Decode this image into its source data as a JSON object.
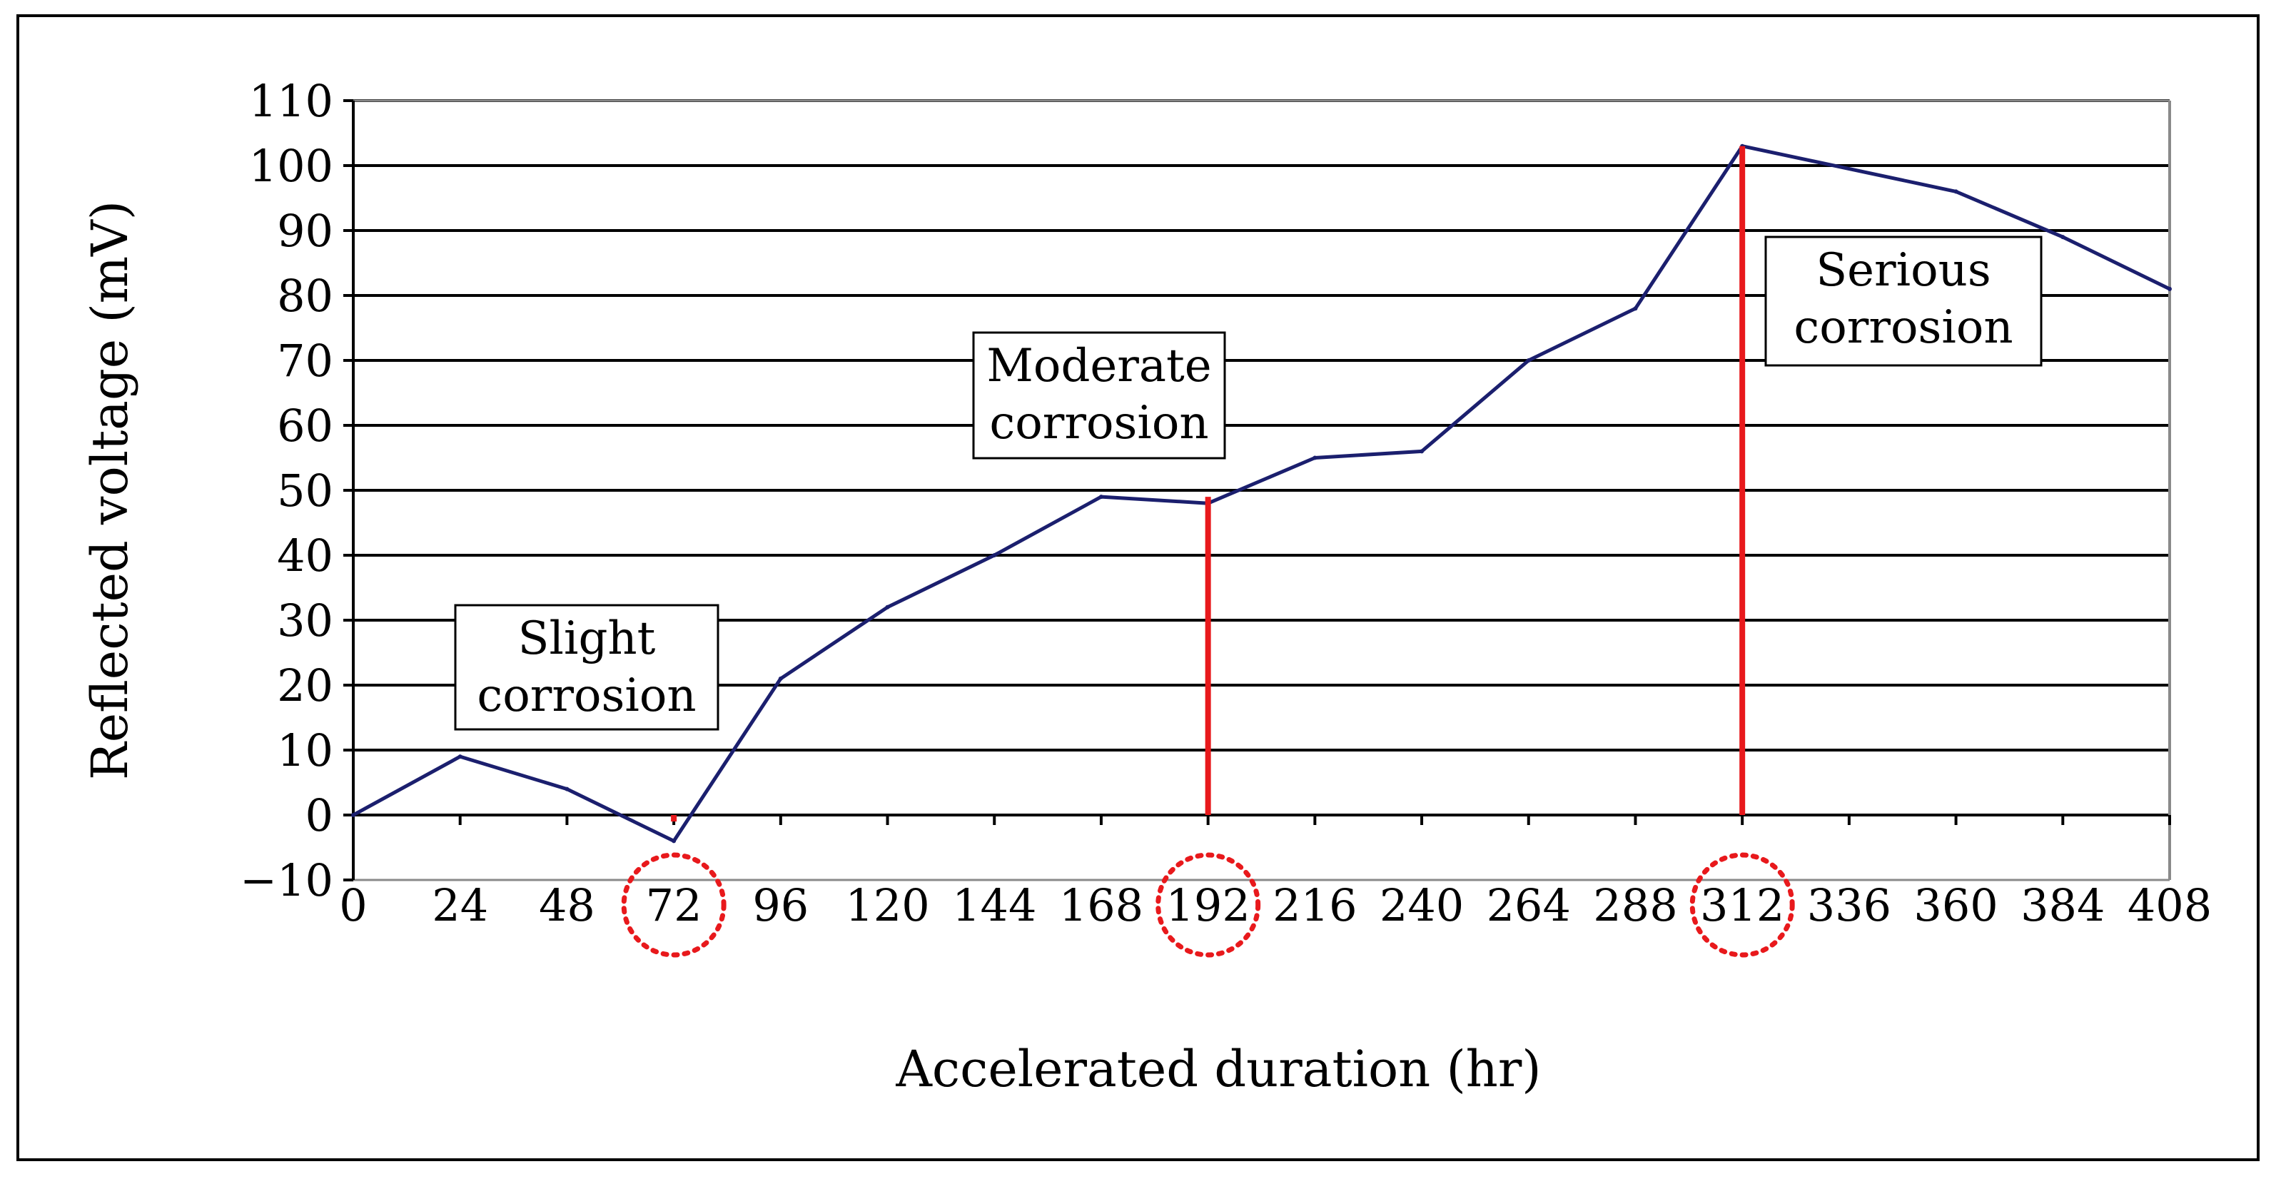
{
  "chart_data": {
    "type": "line",
    "xlabel": "Accelerated duration (hr)",
    "ylabel": "Reflected voltage (mV)",
    "x_ticks": [
      0,
      24,
      48,
      72,
      96,
      120,
      144,
      168,
      192,
      216,
      240,
      264,
      288,
      312,
      336,
      360,
      384,
      408
    ],
    "y_ticks": [
      -10,
      0,
      10,
      20,
      30,
      40,
      50,
      60,
      70,
      80,
      90,
      100,
      110
    ],
    "xlim": [
      0,
      408
    ],
    "ylim": [
      -10,
      110
    ],
    "grid": true,
    "series": [
      {
        "name": "Reflected voltage",
        "color": "#1b1f6e",
        "x": [
          0,
          24,
          48,
          72,
          96,
          120,
          144,
          168,
          192,
          216,
          240,
          264,
          288,
          312,
          360,
          384,
          408
        ],
        "y": [
          0,
          9,
          4,
          -4,
          21,
          32,
          40,
          49,
          48,
          55,
          56,
          70,
          78,
          103,
          96,
          89,
          81
        ]
      }
    ],
    "markers": [
      {
        "x": 72,
        "y_top": -1,
        "color": "#e8191c"
      },
      {
        "x": 192,
        "y_top": 49,
        "color": "#e8191c"
      },
      {
        "x": 312,
        "y_top": 103,
        "color": "#e8191c"
      }
    ],
    "highlighted_ticks": [
      72,
      192,
      312
    ],
    "annotations": [
      {
        "lines": [
          "Slight",
          "corrosion"
        ]
      },
      {
        "lines": [
          "Moderate",
          "corrosion"
        ]
      },
      {
        "lines": [
          "Serious",
          "corrosion"
        ]
      }
    ]
  }
}
